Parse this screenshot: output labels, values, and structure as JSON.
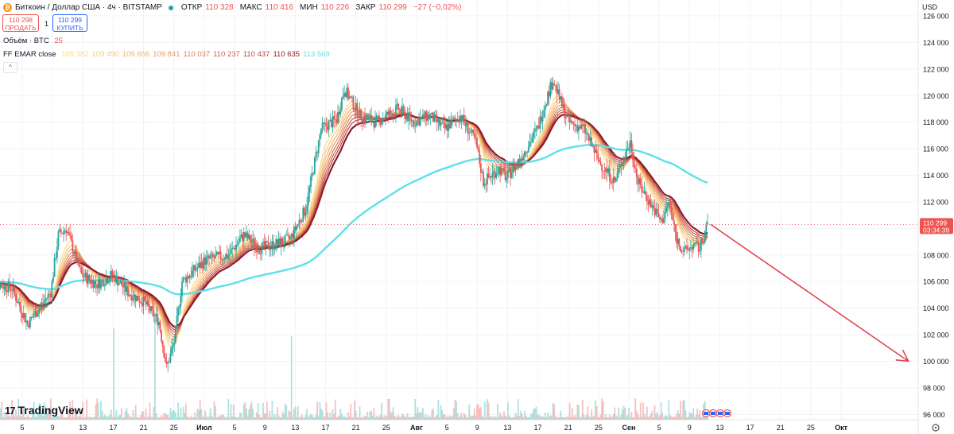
{
  "header": {
    "symbol_title": "Биткоин / Доллар США · 4ч · BITSTAMP",
    "coin_glyph": "₿",
    "ohlc": [
      {
        "label": "ОТКР",
        "value": "110 328"
      },
      {
        "label": "МАКС",
        "value": "110 416"
      },
      {
        "label": "МИН",
        "value": "110 226"
      },
      {
        "label": "ЗАКР",
        "value": "110 299"
      },
      {
        "label": "",
        "value": "−27 (−0,02%)"
      }
    ],
    "sell_price": "110 298",
    "sell_label": "ПРОДАТЬ",
    "spread": "1",
    "buy_price": "110 299",
    "buy_label": "КУПИТЬ",
    "volume_label": "Объём · BTC",
    "volume_value": "25",
    "ema_label": "FF EMAR close",
    "ema_values": [
      "109 382",
      "109 490",
      "109 656",
      "109 841",
      "110 037",
      "110 237",
      "110 437",
      "110 635",
      "113 569"
    ],
    "ema_colors": [
      "#fbd889",
      "#f7c979",
      "#f3b26c",
      "#eb9862",
      "#dd7c55",
      "#cd5f4d",
      "#b94544",
      "#8e1d28",
      "#5ee0e8"
    ],
    "collapse_glyph": "^"
  },
  "brand": {
    "mark": "17",
    "name": "TradingView"
  },
  "colors": {
    "up": "#26a69a",
    "down": "#ef5350",
    "arrow": "#e04553",
    "price_line": "#ef5350",
    "ema_slow": "#5ee0e8"
  },
  "chart_data": {
    "type": "candlestick",
    "timeframe": "4ч",
    "currency": "USD",
    "y_axis": {
      "unit_label": "USD",
      "ylim": [
        95600,
        127200
      ],
      "ticks": [
        96000,
        98000,
        100000,
        102000,
        104000,
        106000,
        108000,
        110000,
        112000,
        114000,
        116000,
        118000,
        120000,
        122000,
        124000,
        126000
      ],
      "tick_labels": [
        "96 000",
        "98 000",
        "100 000",
        "102 000",
        "104 000",
        "106 000",
        "108 000",
        "110 000",
        "112 000",
        "114 000",
        "116 000",
        "118 000",
        "120 000",
        "122 000",
        "124 000",
        "126 000"
      ]
    },
    "x_axis": {
      "tick_labels": [
        "5",
        "9",
        "13",
        "17",
        "21",
        "25",
        "Июл",
        "5",
        "9",
        "13",
        "17",
        "21",
        "25",
        "Авг",
        "5",
        "9",
        "13",
        "17",
        "21",
        "25",
        "Сен",
        "5",
        "9",
        "13",
        "17",
        "21",
        "25",
        "Окт"
      ]
    },
    "last_price": {
      "value": "110 299",
      "countdown": "03:34:39"
    },
    "price_path": [
      {
        "day": 0,
        "price": 106000
      },
      {
        "day": 3,
        "price": 105500
      },
      {
        "day": 5,
        "price": 102800
      },
      {
        "day": 8,
        "price": 105200
      },
      {
        "day": 9,
        "price": 109500
      },
      {
        "day": 10,
        "price": 110000
      },
      {
        "day": 12,
        "price": 106500
      },
      {
        "day": 14,
        "price": 105800
      },
      {
        "day": 16,
        "price": 106500
      },
      {
        "day": 18,
        "price": 105200
      },
      {
        "day": 20,
        "price": 104500
      },
      {
        "day": 22,
        "price": 103000
      },
      {
        "day": 23,
        "price": 99500
      },
      {
        "day": 24,
        "price": 101500
      },
      {
        "day": 25,
        "price": 106000
      },
      {
        "day": 28,
        "price": 107600
      },
      {
        "day": 31,
        "price": 108000
      },
      {
        "day": 33,
        "price": 109500
      },
      {
        "day": 35,
        "price": 108500
      },
      {
        "day": 37,
        "price": 108800
      },
      {
        "day": 39,
        "price": 109200
      },
      {
        "day": 41,
        "price": 111500
      },
      {
        "day": 43,
        "price": 117500
      },
      {
        "day": 45,
        "price": 118200
      },
      {
        "day": 46,
        "price": 120500
      },
      {
        "day": 48,
        "price": 118500
      },
      {
        "day": 50,
        "price": 118000
      },
      {
        "day": 53,
        "price": 119000
      },
      {
        "day": 55,
        "price": 118000
      },
      {
        "day": 57,
        "price": 118500
      },
      {
        "day": 59,
        "price": 117500
      },
      {
        "day": 61,
        "price": 118500
      },
      {
        "day": 63,
        "price": 116500
      },
      {
        "day": 64,
        "price": 113500
      },
      {
        "day": 66,
        "price": 114500
      },
      {
        "day": 67,
        "price": 113800
      },
      {
        "day": 69,
        "price": 115500
      },
      {
        "day": 71,
        "price": 117500
      },
      {
        "day": 72,
        "price": 119500
      },
      {
        "day": 73,
        "price": 121200
      },
      {
        "day": 74,
        "price": 119500
      },
      {
        "day": 75,
        "price": 118000
      },
      {
        "day": 77,
        "price": 117500
      },
      {
        "day": 79,
        "price": 115000
      },
      {
        "day": 81,
        "price": 113500
      },
      {
        "day": 82,
        "price": 115200
      },
      {
        "day": 83,
        "price": 116500
      },
      {
        "day": 84,
        "price": 113500
      },
      {
        "day": 86,
        "price": 111500
      },
      {
        "day": 87,
        "price": 110500
      },
      {
        "day": 88,
        "price": 112000
      },
      {
        "day": 89,
        "price": 109200
      },
      {
        "day": 90,
        "price": 108200
      },
      {
        "day": 91,
        "price": 108700
      },
      {
        "day": 92,
        "price": 108500
      },
      {
        "day": 93,
        "price": 110300
      }
    ],
    "projection_arrow": {
      "from": {
        "day": 93,
        "price": 110300
      },
      "to": {
        "day": 119,
        "price": 100000
      }
    }
  }
}
